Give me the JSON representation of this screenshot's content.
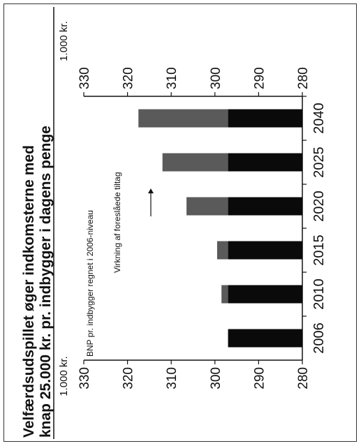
{
  "chart_data": {
    "type": "bar",
    "orientation": "rotated-90-ccw",
    "title_line1": "Velfærdsudspillet øger indkomsterne med",
    "title_line2": "knap 25.000 kr. pr. indbygger i dagens penge",
    "unit_left": "1.000 kr.",
    "unit_right": "1.000 kr.",
    "categories": [
      "2006",
      "2010",
      "2015",
      "2020",
      "2025",
      "2040"
    ],
    "ylim": [
      280,
      330
    ],
    "yticks": [
      "280",
      "290",
      "300",
      "310",
      "320",
      "330"
    ],
    "series": [
      {
        "name": "BNP pr. indbygger regnet i 2006-niveau",
        "color": "#0a0a0a",
        "values": [
          297,
          297,
          297,
          297,
          297,
          297
        ]
      },
      {
        "name": "Virkning af foreslåede tiltag",
        "color": "#5a5a5a",
        "values": [
          0,
          1.5,
          2.5,
          9.5,
          15,
          20.5
        ]
      }
    ],
    "grid": false
  }
}
